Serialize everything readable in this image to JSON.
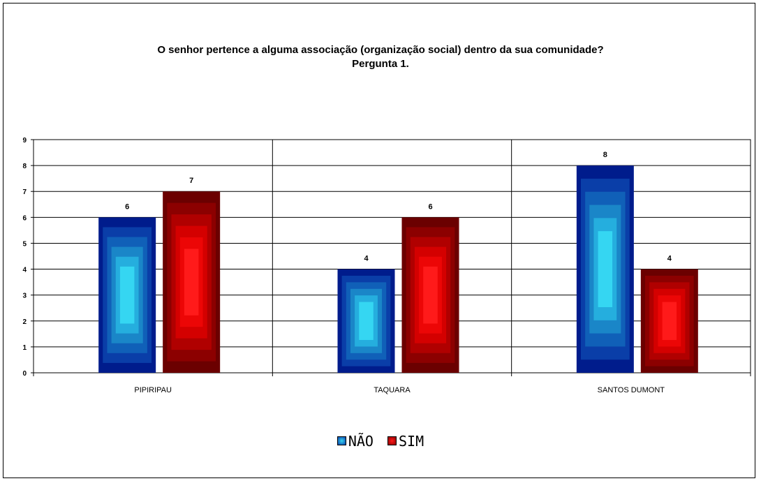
{
  "chart_data": {
    "type": "bar",
    "title": "O senhor pertence a alguma associação (organização social) dentro da sua comunidade?",
    "subtitle": "Pergunta 1.",
    "categories": [
      "PIPIRIPAU",
      "TAQUARA",
      "SANTOS DUMONT"
    ],
    "series": [
      {
        "name": "NÃO",
        "values": [
          6,
          4,
          8
        ],
        "colors": [
          "#001c8c",
          "#0a3ea8",
          "#1060b8",
          "#1a86c8",
          "#25aede",
          "#35d6f2"
        ]
      },
      {
        "name": "SIM",
        "values": [
          7,
          6,
          4
        ],
        "colors": [
          "#6b0000",
          "#8c0000",
          "#b00000",
          "#d40000",
          "#ec0606",
          "#ff1a1a"
        ]
      }
    ],
    "ylim": [
      0,
      9
    ],
    "yticks": [
      "0",
      "1",
      "2",
      "3",
      "4",
      "5",
      "6",
      "7",
      "8",
      "9"
    ],
    "data_labels": true,
    "grid": true,
    "legend_position": "bottom-center"
  }
}
